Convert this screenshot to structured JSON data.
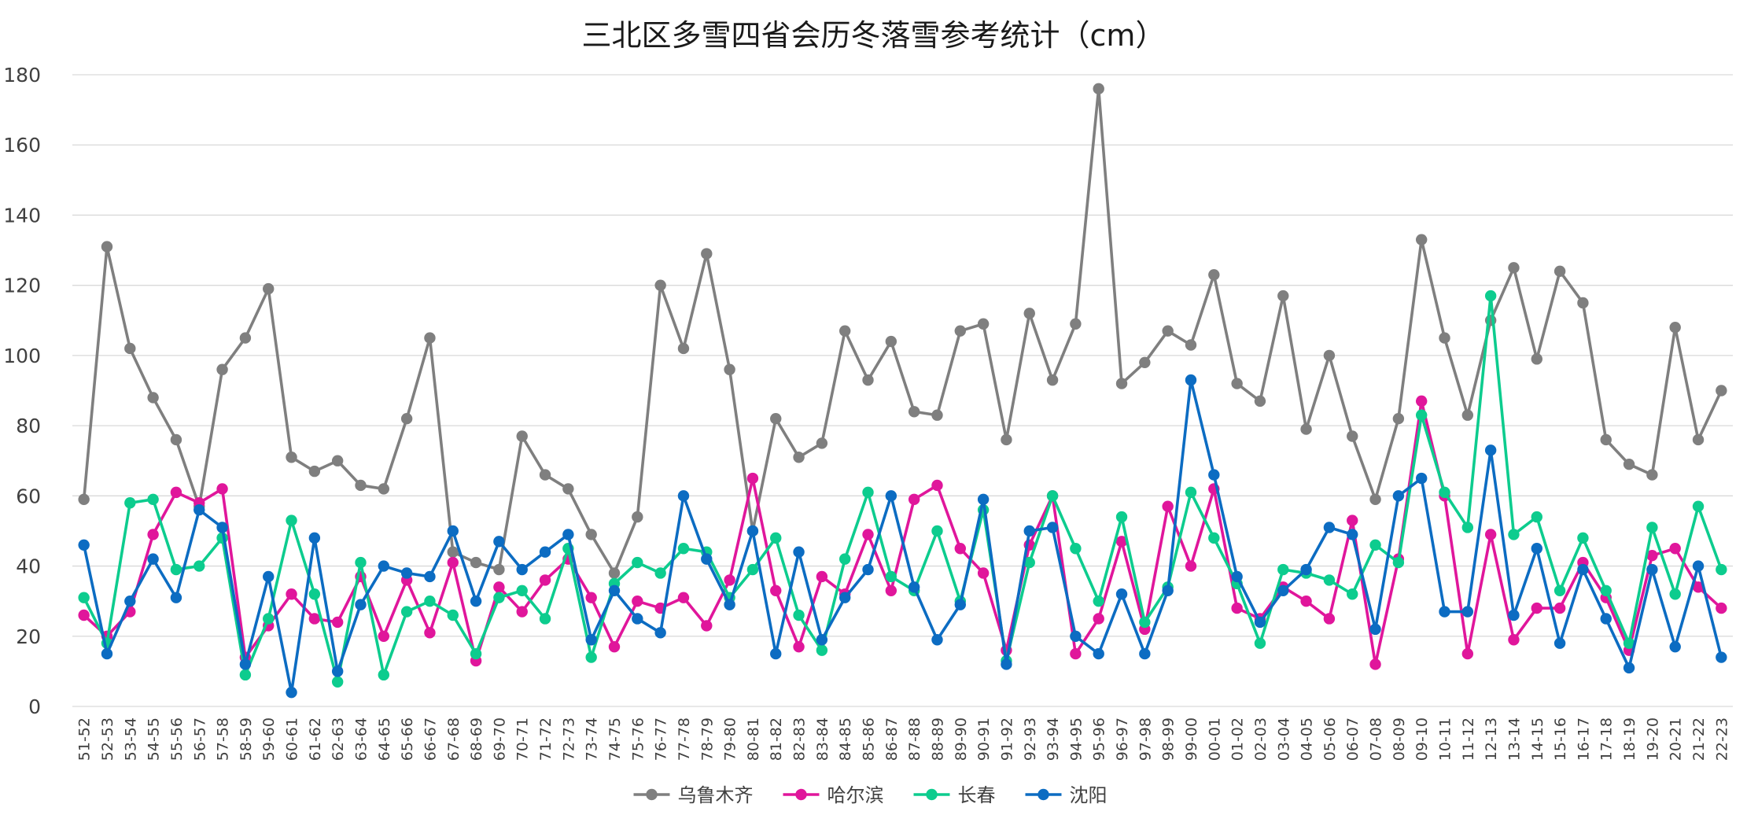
{
  "chart_data": {
    "type": "line",
    "title": "三北区多雪四省会历冬落雪参考统计（cm）",
    "xlabel": "",
    "ylabel": "",
    "ylim": [
      0,
      180
    ],
    "yticks": [
      0,
      20,
      40,
      60,
      80,
      100,
      120,
      140,
      160,
      180
    ],
    "grid": "horizontal",
    "legend_position": "bottom",
    "categories": [
      "51-52",
      "52-53",
      "53-54",
      "54-55",
      "55-56",
      "56-57",
      "57-58",
      "58-59",
      "59-60",
      "60-61",
      "61-62",
      "62-63",
      "63-64",
      "64-65",
      "65-66",
      "66-67",
      "67-68",
      "68-69",
      "69-70",
      "70-71",
      "71-72",
      "72-73",
      "73-74",
      "74-75",
      "75-76",
      "76-77",
      "77-78",
      "78-79",
      "79-80",
      "80-81",
      "81-82",
      "82-83",
      "83-84",
      "84-85",
      "85-86",
      "86-87",
      "87-88",
      "88-89",
      "89-90",
      "90-91",
      "91-92",
      "92-93",
      "93-94",
      "94-95",
      "95-96",
      "96-97",
      "97-98",
      "98-99",
      "99-00",
      "00-01",
      "01-02",
      "02-03",
      "03-04",
      "04-05",
      "05-06",
      "06-07",
      "07-08",
      "08-09",
      "09-10",
      "10-11",
      "11-12",
      "12-13",
      "13-14",
      "14-15",
      "15-16",
      "16-17",
      "17-18",
      "18-19",
      "19-20",
      "20-21",
      "21-22",
      "22-23"
    ],
    "series": [
      {
        "name": "乌鲁木齐",
        "color": "#7f7f7f",
        "values": [
          59,
          131,
          102,
          88,
          76,
          57,
          96,
          105,
          119,
          71,
          67,
          70,
          63,
          62,
          82,
          105,
          44,
          41,
          39,
          77,
          66,
          62,
          49,
          38,
          54,
          120,
          102,
          129,
          96,
          50,
          82,
          71,
          75,
          107,
          93,
          104,
          84,
          83,
          107,
          109,
          76,
          112,
          93,
          109,
          176,
          92,
          98,
          107,
          103,
          123,
          92,
          87,
          117,
          79,
          100,
          77,
          59,
          82,
          133,
          105,
          83,
          110,
          125,
          99,
          124,
          115,
          76,
          69,
          66,
          108,
          76,
          90
        ]
      },
      {
        "name": "哈尔滨",
        "color": "#e0169b",
        "values": [
          26,
          20,
          27,
          49,
          61,
          58,
          62,
          14,
          23,
          32,
          25,
          24,
          37,
          20,
          36,
          21,
          41,
          13,
          34,
          27,
          36,
          42,
          31,
          17,
          30,
          28,
          31,
          23,
          36,
          65,
          33,
          17,
          37,
          32,
          49,
          33,
          59,
          63,
          45,
          38,
          16,
          46,
          60,
          15,
          25,
          47,
          22,
          57,
          40,
          62,
          28,
          25,
          34,
          30,
          25,
          53,
          12,
          42,
          87,
          60,
          15,
          49,
          19,
          28,
          28,
          41,
          31,
          16,
          43,
          45,
          34,
          28
        ]
      },
      {
        "name": "长春",
        "color": "#0dcc8e",
        "values": [
          31,
          18,
          58,
          59,
          39,
          40,
          48,
          9,
          25,
          53,
          32,
          7,
          41,
          9,
          27,
          30,
          26,
          15,
          31,
          33,
          25,
          45,
          14,
          35,
          41,
          38,
          45,
          44,
          31,
          39,
          48,
          26,
          16,
          42,
          61,
          37,
          33,
          50,
          30,
          56,
          13,
          41,
          60,
          45,
          30,
          54,
          24,
          34,
          61,
          48,
          35,
          18,
          39,
          38,
          36,
          32,
          46,
          41,
          83,
          61,
          51,
          117,
          49,
          54,
          33,
          48,
          33,
          18,
          51,
          32,
          57,
          39
        ]
      },
      {
        "name": "沈阳",
        "color": "#0c6cc2",
        "values": [
          46,
          15,
          30,
          42,
          31,
          56,
          51,
          12,
          37,
          4,
          48,
          10,
          29,
          40,
          38,
          37,
          50,
          30,
          47,
          39,
          44,
          49,
          19,
          33,
          25,
          21,
          60,
          42,
          29,
          50,
          15,
          44,
          19,
          31,
          39,
          60,
          34,
          19,
          29,
          59,
          12,
          50,
          51,
          20,
          15,
          32,
          15,
          33,
          93,
          66,
          37,
          24,
          33,
          39,
          51,
          49,
          22,
          60,
          65,
          27,
          27,
          73,
          26,
          45,
          18,
          39,
          25,
          11,
          39,
          17,
          40,
          14
        ]
      }
    ]
  }
}
